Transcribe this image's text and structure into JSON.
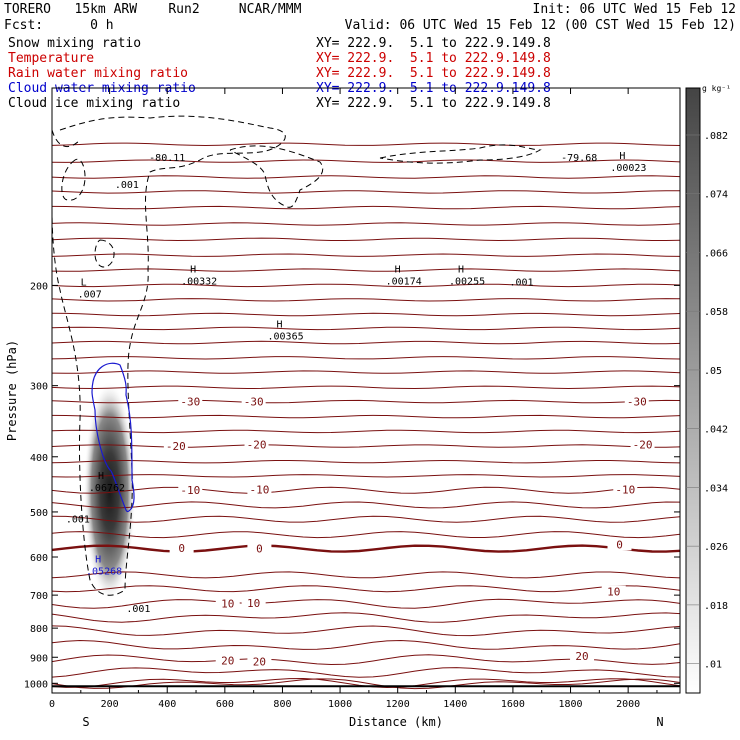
{
  "header": {
    "line1_left": "TORERO   15km ARW    Run2     NCAR/MMM",
    "line1_right": "Init: 06 UTC Wed 15 Feb 12",
    "line2_left": "Fcst:      0 h",
    "line2_right": "Valid: 06 UTC Wed 15 Feb 12 (00 CST Wed 15 Feb 12)"
  },
  "fields": [
    {
      "label": "Snow mixing ratio",
      "xy": "XY= 222.9.  5.1 to 222.9.149.8",
      "color": "#000000"
    },
    {
      "label": "Temperature",
      "xy": "XY= 222.9.  5.1 to 222.9.149.8",
      "color": "#cc0000"
    },
    {
      "label": "Rain water mixing ratio",
      "xy": "XY= 222.9.  5.1 to 222.9.149.8",
      "color": "#cc0000"
    },
    {
      "label": "Cloud water mixing ratio",
      "xy": "XY= 222.9.  5.1 to 222.9.149.8",
      "color": "#0000cc"
    },
    {
      "label": "Cloud ice mixing ratio",
      "xy": "XY= 222.9.  5.1 to 222.9.149.8",
      "color": "#000000"
    }
  ],
  "colors": {
    "temperature": "#7a1010",
    "cloud_water": "#1a1ad0",
    "axis": "#000000"
  },
  "chart_data": {
    "type": "cross-section",
    "xlabel": "Distance (km)",
    "ylabel": "Pressure (hPa)",
    "xlim": [
      0,
      2180
    ],
    "ylim": [
      1040,
      90
    ],
    "y_scale": "log",
    "x_ticks": [
      0,
      200,
      400,
      600,
      800,
      1000,
      1200,
      1400,
      1600,
      1800,
      2000
    ],
    "y_ticks": [
      200,
      300,
      400,
      500,
      600,
      700,
      800,
      900,
      1000
    ],
    "x_end_labels": {
      "left": "S",
      "right": "N"
    },
    "colorbar": {
      "unit": "g kg⁻¹",
      "ticks": [
        ".01",
        ".018",
        ".026",
        ".034",
        ".042",
        ".05",
        ".058",
        ".066",
        ".074",
        ".082"
      ]
    },
    "temperature_isotherms": [
      {
        "p": 1001,
        "label": ""
      },
      {
        "p": 995,
        "label": ""
      },
      {
        "p": 955,
        "label": ""
      },
      {
        "p": 910,
        "label": "20"
      },
      {
        "p": 860,
        "label": ""
      },
      {
        "p": 810,
        "label": ""
      },
      {
        "p": 765,
        "label": ""
      },
      {
        "p": 722,
        "label": "10"
      },
      {
        "p": 682,
        "label": ""
      },
      {
        "p": 645,
        "label": ""
      },
      {
        "p": 580,
        "label": "0",
        "bold": true
      },
      {
        "p": 548,
        "label": ""
      },
      {
        "p": 515,
        "label": ""
      },
      {
        "p": 486,
        "label": ""
      },
      {
        "p": 458,
        "label": "-10"
      },
      {
        "p": 432,
        "label": ""
      },
      {
        "p": 408,
        "label": ""
      },
      {
        "p": 383,
        "label": "-20"
      },
      {
        "p": 361,
        "label": ""
      },
      {
        "p": 340,
        "label": ""
      },
      {
        "p": 320,
        "label": "-30"
      },
      {
        "p": 302,
        "label": ""
      },
      {
        "p": 284,
        "label": ""
      },
      {
        "p": 268,
        "label": ""
      },
      {
        "p": 252,
        "label": ""
      },
      {
        "p": 238,
        "label": ""
      },
      {
        "p": 225,
        "label": ""
      },
      {
        "p": 212,
        "label": ""
      },
      {
        "p": 200,
        "label": ""
      },
      {
        "p": 188,
        "label": ""
      },
      {
        "p": 177,
        "label": ""
      },
      {
        "p": 166,
        "label": ""
      },
      {
        "p": 156,
        "label": ""
      },
      {
        "p": 146,
        "label": ""
      },
      {
        "p": 137,
        "label": ""
      },
      {
        "p": 129,
        "label": ""
      },
      {
        "p": 121,
        "label": ""
      },
      {
        "p": 113,
        "label": ""
      }
    ],
    "isotherm_labels": [
      {
        "text": "-30",
        "x": 480,
        "p": 320
      },
      {
        "text": "-30",
        "x": 700,
        "p": 320
      },
      {
        "text": "-30",
        "x": 2030,
        "p": 320
      },
      {
        "text": "-20",
        "x": 430,
        "p": 383
      },
      {
        "text": "-20",
        "x": 710,
        "p": 381
      },
      {
        "text": "-20",
        "x": 2050,
        "p": 381
      },
      {
        "text": "-10",
        "x": 480,
        "p": 458
      },
      {
        "text": "-10",
        "x": 720,
        "p": 457
      },
      {
        "text": "-10",
        "x": 1990,
        "p": 457
      },
      {
        "text": "0",
        "x": 450,
        "p": 578
      },
      {
        "text": "0",
        "x": 720,
        "p": 580
      },
      {
        "text": "0",
        "x": 1970,
        "p": 570
      },
      {
        "text": "10",
        "x": 610,
        "p": 724
      },
      {
        "text": "10",
        "x": 700,
        "p": 722
      },
      {
        "text": "10",
        "x": 1950,
        "p": 690
      },
      {
        "text": "20",
        "x": 610,
        "p": 912
      },
      {
        "text": "20",
        "x": 720,
        "p": 916
      },
      {
        "text": "20",
        "x": 1840,
        "p": 895
      }
    ],
    "extrema_labels": [
      {
        "text": "H",
        "x": 170,
        "p": 438,
        "value": ".06762",
        "color": "#000000"
      },
      {
        "text": "H",
        "x": 160,
        "p": 613,
        "value": ".05268",
        "color": "#1a1ad0"
      },
      {
        "text": "H",
        "x": 490,
        "p": 190,
        "value": ".00332",
        "color": "#000000"
      },
      {
        "text": "H",
        "x": 790,
        "p": 237,
        "value": ".00365",
        "color": "#000000"
      },
      {
        "text": "H",
        "x": 1200,
        "p": 190,
        "value": ".00174",
        "color": "#000000"
      },
      {
        "text": "H",
        "x": 1420,
        "p": 190,
        "value": ".00255",
        "color": "#000000"
      },
      {
        "text": "H",
        "x": 1980,
        "p": 120,
        "value": ".00023",
        "color": "#000000"
      },
      {
        "text": "L",
        "x": 110,
        "p": 200,
        "value": ".007",
        "color": "#000000"
      }
    ],
    "annotations": [
      {
        "text": "-80.11",
        "x": 400,
        "p": 121
      },
      {
        "text": "-79.68",
        "x": 1830,
        "p": 121
      },
      {
        "text": ".001",
        "x": 260,
        "p": 135
      },
      {
        "text": ".001",
        "x": 90,
        "p": 522
      },
      {
        "text": ".001",
        "x": 1630,
        "p": 200
      },
      {
        "text": ".001",
        "x": 300,
        "p": 750
      }
    ]
  }
}
